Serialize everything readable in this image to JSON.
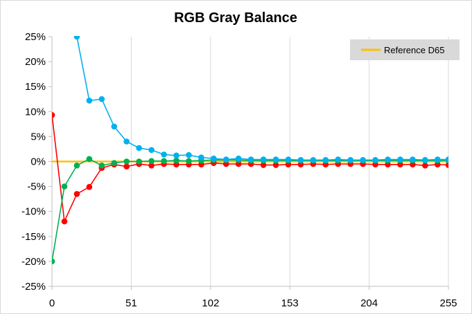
{
  "chart_data": {
    "type": "line",
    "title": "RGB Gray Balance",
    "xlabel": "",
    "ylabel": "",
    "x_ticks": [
      0,
      51,
      102,
      153,
      204,
      255
    ],
    "y_ticks": [
      -25,
      -20,
      -15,
      -10,
      -5,
      0,
      5,
      10,
      15,
      20,
      25
    ],
    "y_tick_labels": [
      "-25%",
      "-20%",
      "-15%",
      "-10%",
      "-5%",
      "0%",
      "5%",
      "10%",
      "15%",
      "20%",
      "25%"
    ],
    "xlim": [
      0,
      255
    ],
    "ylim": [
      -25,
      25
    ],
    "grid": "vertical",
    "legend_position": "top-right",
    "legend": [
      "Reference D65"
    ],
    "x": [
      0,
      8,
      16,
      24,
      32,
      40,
      48,
      56,
      64,
      72,
      80,
      88,
      96,
      104,
      112,
      120,
      128,
      136,
      144,
      152,
      160,
      168,
      176,
      184,
      192,
      200,
      208,
      216,
      224,
      232,
      240,
      248,
      255
    ],
    "reference": {
      "name": "Reference D65",
      "color": "#FFC000",
      "x": [
        0,
        255
      ],
      "values": [
        0,
        0
      ]
    },
    "series": [
      {
        "color": "#FF0000",
        "values": [
          9.3,
          -12.0,
          -6.5,
          -5.1,
          -1.3,
          -0.6,
          -1.0,
          -0.5,
          -0.8,
          -0.5,
          -0.6,
          -0.6,
          -0.6,
          -0.3,
          -0.5,
          -0.5,
          -0.5,
          -0.7,
          -0.7,
          -0.6,
          -0.6,
          -0.5,
          -0.6,
          -0.5,
          -0.5,
          -0.5,
          -0.6,
          -0.6,
          -0.6,
          -0.6,
          -0.8,
          -0.6,
          -0.7
        ]
      },
      {
        "color": "#00B050",
        "values": [
          -20.0,
          -5.0,
          -0.8,
          0.5,
          -0.8,
          -0.3,
          0.0,
          0.0,
          0.1,
          0.1,
          0.2,
          0.1,
          0.2,
          0.3,
          0.3,
          0.3,
          0.2,
          0.2,
          0.2,
          0.2,
          0.2,
          0.2,
          0.2,
          0.2,
          0.2,
          0.2,
          0.2,
          0.2,
          0.2,
          0.2,
          0.2,
          0.2,
          0.2
        ]
      },
      {
        "color": "#00B0F0",
        "values": [
          null,
          null,
          25.0,
          12.2,
          12.5,
          7.0,
          4.0,
          2.7,
          2.3,
          1.4,
          1.2,
          1.3,
          0.8,
          0.6,
          0.4,
          0.6,
          0.4,
          0.4,
          0.4,
          0.4,
          0.3,
          0.3,
          0.3,
          0.4,
          0.3,
          0.3,
          0.3,
          0.4,
          0.4,
          0.4,
          0.3,
          0.4,
          0.4
        ]
      }
    ]
  }
}
